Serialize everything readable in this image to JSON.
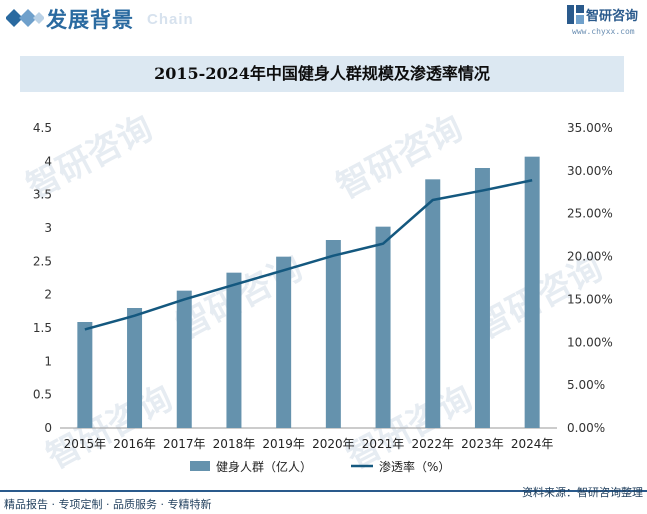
{
  "header": {
    "section_title": "发展背景",
    "section_en": "Chain",
    "logo_name": "智研咨询",
    "logo_url": "www.chyxx.com"
  },
  "watermark_text": "智研咨询",
  "footer": {
    "tagline": "精品报告 · 专项定制 · 品质服务 · 专精特新",
    "source": "资料来源：智研咨询整理"
  },
  "colors": {
    "bar": "#6592ad",
    "line": "#14587f",
    "accent": "#2a6aa0"
  },
  "chart_data": {
    "type": "bar",
    "title": "2015-2024年中国健身人群规模及渗透率情况",
    "categories": [
      "2015年",
      "2016年",
      "2017年",
      "2018年",
      "2019年",
      "2020年",
      "2021年",
      "2022年",
      "2023年",
      "2024年"
    ],
    "series": [
      {
        "name": "健身人群（亿人）",
        "type": "bar",
        "axis": "left",
        "values": [
          1.59,
          1.8,
          2.06,
          2.33,
          2.57,
          2.82,
          3.02,
          3.73,
          3.9,
          4.07
        ]
      },
      {
        "name": "渗透率（%）",
        "type": "line",
        "axis": "right",
        "values": [
          11.5,
          13.1,
          15.0,
          16.7,
          18.4,
          20.1,
          21.5,
          26.6,
          27.7,
          28.9
        ]
      }
    ],
    "y_left": {
      "min": 0,
      "max": 4.5,
      "ticks": [
        "0",
        "0.5",
        "1",
        "1.5",
        "2",
        "2.5",
        "3",
        "3.5",
        "4",
        "4.5"
      ]
    },
    "y_right": {
      "min": 0,
      "max": 35,
      "ticks": [
        "0.00%",
        "5.00%",
        "10.00%",
        "15.00%",
        "20.00%",
        "25.00%",
        "30.00%",
        "35.00%"
      ]
    },
    "legend_position": "bottom",
    "grid": false
  }
}
